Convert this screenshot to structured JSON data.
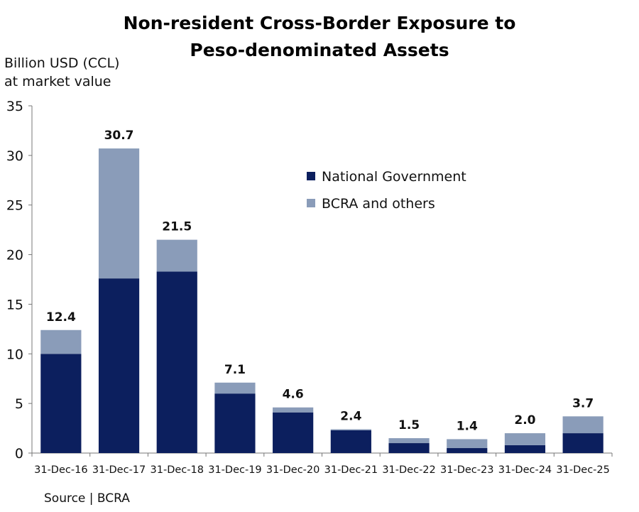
{
  "chart_data": {
    "type": "bar",
    "stacked": true,
    "title_lines": [
      "Non-resident Cross-Border Exposure to",
      "Peso-denominated Assets"
    ],
    "ylabel_lines": [
      "Billion USD (CCL)",
      "at market value"
    ],
    "xlabel": "",
    "categories": [
      "31-Dec-16",
      "31-Dec-17",
      "31-Dec-18",
      "31-Dec-19",
      "31-Dec-20",
      "31-Dec-21",
      "31-Dec-22",
      "31-Dec-23",
      "31-Dec-24",
      "31-Dec-25"
    ],
    "series": [
      {
        "name": "National Government",
        "color": "#0c1f5e",
        "values": [
          10.0,
          17.6,
          18.3,
          6.0,
          4.1,
          2.3,
          1.0,
          0.5,
          0.8,
          2.0
        ]
      },
      {
        "name": "BCRA and others",
        "color": "#8a9cb9",
        "values": [
          2.4,
          13.1,
          3.2,
          1.1,
          0.5,
          0.1,
          0.5,
          0.9,
          1.2,
          1.7
        ]
      }
    ],
    "totals": [
      "12.4",
      "30.7",
      "21.5",
      "7.1",
      "4.6",
      "2.4",
      "1.5",
      "1.4",
      "2.0",
      "3.7"
    ],
    "ylim": [
      0,
      35
    ],
    "yticks": [
      0,
      5,
      10,
      15,
      20,
      25,
      30,
      35
    ],
    "grid": false,
    "legend_position": "upper-center-right"
  },
  "source": "Source | BCRA"
}
